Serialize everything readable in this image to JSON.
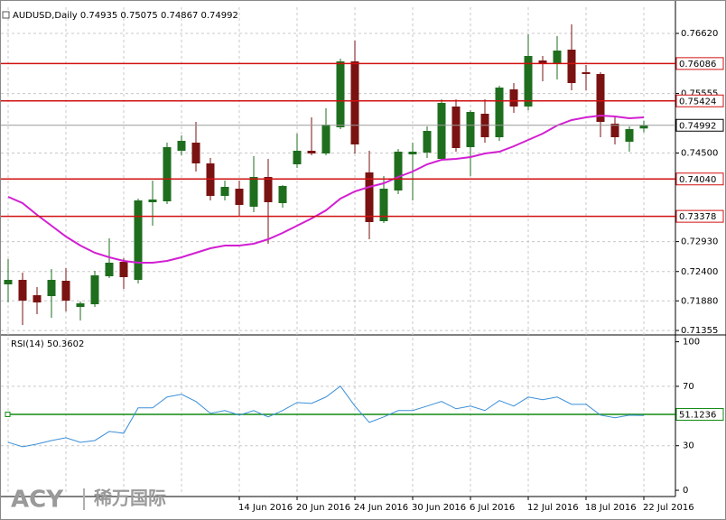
{
  "chart_data": [
    {
      "type": "candlestick",
      "title": "AUDUSD,Daily 0.74935 0.75075 0.74867 0.74992",
      "categories": [
        null,
        null,
        null,
        null,
        null,
        null,
        null,
        null,
        null,
        null,
        null,
        null,
        null,
        null,
        null,
        null,
        "14 Jun 2016",
        null,
        null,
        null,
        "20 Jun 2016",
        null,
        null,
        null,
        "24 Jun 2016",
        null,
        null,
        null,
        "30 Jun 2016",
        null,
        null,
        null,
        "6 Jul 2016",
        null,
        null,
        null,
        "12 Jul 2016",
        null,
        null,
        null,
        "18 Jul 2016",
        null,
        null,
        null,
        "22 Jul 2016"
      ],
      "open": [
        0.72172,
        0.72252,
        0.7198,
        0.71964,
        0.72236,
        0.71772,
        0.7182,
        0.72316,
        0.72572,
        0.72252,
        0.73628,
        0.73644,
        0.7454,
        0.74684,
        0.74316,
        0.7374,
        0.73868,
        0.73548,
        0.74076,
        0.73612,
        0.743,
        0.7454,
        0.74492,
        0.74956,
        0.76124,
        0.74156,
        0.73292,
        0.73836,
        0.74476,
        0.74508,
        0.74396,
        0.75324,
        0.74604,
        0.75196,
        0.7478,
        0.75628,
        0.75324,
        0.7614,
        0.76092,
        0.76332,
        0.75932,
        0.759,
        0.7502,
        0.747,
        0.74935
      ],
      "high": [
        0.7262,
        0.7238,
        0.72124,
        0.72444,
        0.7246,
        0.71868,
        0.72412,
        0.72988,
        0.72636,
        0.73692,
        0.74012,
        0.74684,
        0.74812,
        0.75052,
        0.74412,
        0.74012,
        0.74012,
        0.74444,
        0.74396,
        0.73932,
        0.74844,
        0.75132,
        0.75292,
        0.76172,
        0.76492,
        0.7454,
        0.74092,
        0.74572,
        0.74684,
        0.74972,
        0.75452,
        0.75452,
        0.7526,
        0.75452,
        0.75692,
        0.7574,
        0.76604,
        0.7622,
        0.76572,
        0.7678,
        0.7606,
        0.75932,
        0.75132,
        0.74972,
        0.75075
      ],
      "low": [
        0.71852,
        0.71452,
        0.71644,
        0.7158,
        0.71692,
        0.71532,
        0.71772,
        0.72284,
        0.72092,
        0.72188,
        0.73212,
        0.73596,
        0.7446,
        0.74172,
        0.7366,
        0.7366,
        0.73372,
        0.73452,
        0.72892,
        0.73532,
        0.74236,
        0.7446,
        0.7446,
        0.74924,
        0.74492,
        0.72972,
        0.7326,
        0.73772,
        0.7366,
        0.74412,
        0.74364,
        0.74524,
        0.74092,
        0.74684,
        0.74716,
        0.75212,
        0.7526,
        0.75772,
        0.75804,
        0.75612,
        0.75612,
        0.7478,
        0.74652,
        0.74524,
        0.74867
      ],
      "close": [
        0.72252,
        0.71884,
        0.71852,
        0.72252,
        0.71884,
        0.71836,
        0.72332,
        0.72556,
        0.723,
        0.7366,
        0.73676,
        0.74604,
        0.74716,
        0.74316,
        0.7374,
        0.739,
        0.7358,
        0.74076,
        0.73628,
        0.73916,
        0.7454,
        0.74492,
        0.75004,
        0.76124,
        0.74652,
        0.73276,
        0.73868,
        0.74524,
        0.74524,
        0.74892,
        0.75388,
        0.74588,
        0.75228,
        0.7478,
        0.7566,
        0.75324,
        0.7622,
        0.76076,
        0.76316,
        0.7574,
        0.759,
        0.75052,
        0.7478,
        0.74924,
        0.74992
      ],
      "up_color": "#1e6e1e",
      "down_color": "#7a1212",
      "ma": {
        "color": "#d21fd2",
        "values": [
          0.73724,
          0.73612,
          0.73404,
          0.73212,
          0.7302,
          0.7286,
          0.72732,
          0.72652,
          0.72588,
          0.72556,
          0.72556,
          0.72588,
          0.72652,
          0.72732,
          0.72812,
          0.7286,
          0.7286,
          0.72892,
          0.72972,
          0.73084,
          0.73212,
          0.7334,
          0.73484,
          0.73692,
          0.7382,
          0.739,
          0.73964,
          0.74076,
          0.74172,
          0.743,
          0.7438,
          0.74396,
          0.74428,
          0.74492,
          0.74524,
          0.7462,
          0.74732,
          0.74844,
          0.74988,
          0.75084,
          0.75132,
          0.75164,
          0.75148,
          0.75116,
          0.75132
        ]
      },
      "ylim": [
        0.71292,
        0.77084
      ],
      "yticks": [
        {
          "value": 0.7662,
          "label": "0.76620"
        },
        {
          "value": 0.75555,
          "label": "0.75555"
        },
        {
          "value": 0.745,
          "label": "0.74500"
        },
        {
          "value": 0.7293,
          "label": "0.72930"
        },
        {
          "value": 0.724,
          "label": "0.72400"
        },
        {
          "value": 0.7188,
          "label": "0.71880"
        },
        {
          "value": 0.71355,
          "label": "0.71355"
        }
      ],
      "levels": [
        0.76086,
        0.75424,
        {
          "value": 0.7404,
          "label": "0.74040"
        },
        0.73378
      ],
      "levels_color": "#d01010",
      "last_price": 0.74992,
      "grid": true
    },
    {
      "type": "line",
      "title": "RSI(14) 50.3602",
      "values": [
        32.3,
        29.3,
        31.1,
        33.5,
        35.4,
        32.3,
        33.5,
        39.6,
        38.4,
        55.5,
        55.5,
        62.8,
        64.6,
        59.8,
        51.8,
        53.7,
        50.6,
        53.7,
        49.4,
        53.7,
        59.1,
        58.5,
        62.8,
        70.1,
        56.7,
        45.7,
        49.4,
        53.7,
        53.7,
        56.7,
        59.8,
        54.9,
        56.7,
        53.7,
        60.4,
        56.7,
        62.8,
        61.0,
        62.8,
        57.9,
        57.9,
        50.6,
        48.8,
        50.6,
        50.3602
      ],
      "color": "#3a8fd8",
      "ylim": [
        -3,
        104
      ],
      "yticks": [
        100,
        70,
        30,
        0
      ],
      "level": 51.1236,
      "level_color": "#128a12"
    }
  ],
  "watermark": {
    "brand": "ACY",
    "sub": "稀万国际"
  }
}
